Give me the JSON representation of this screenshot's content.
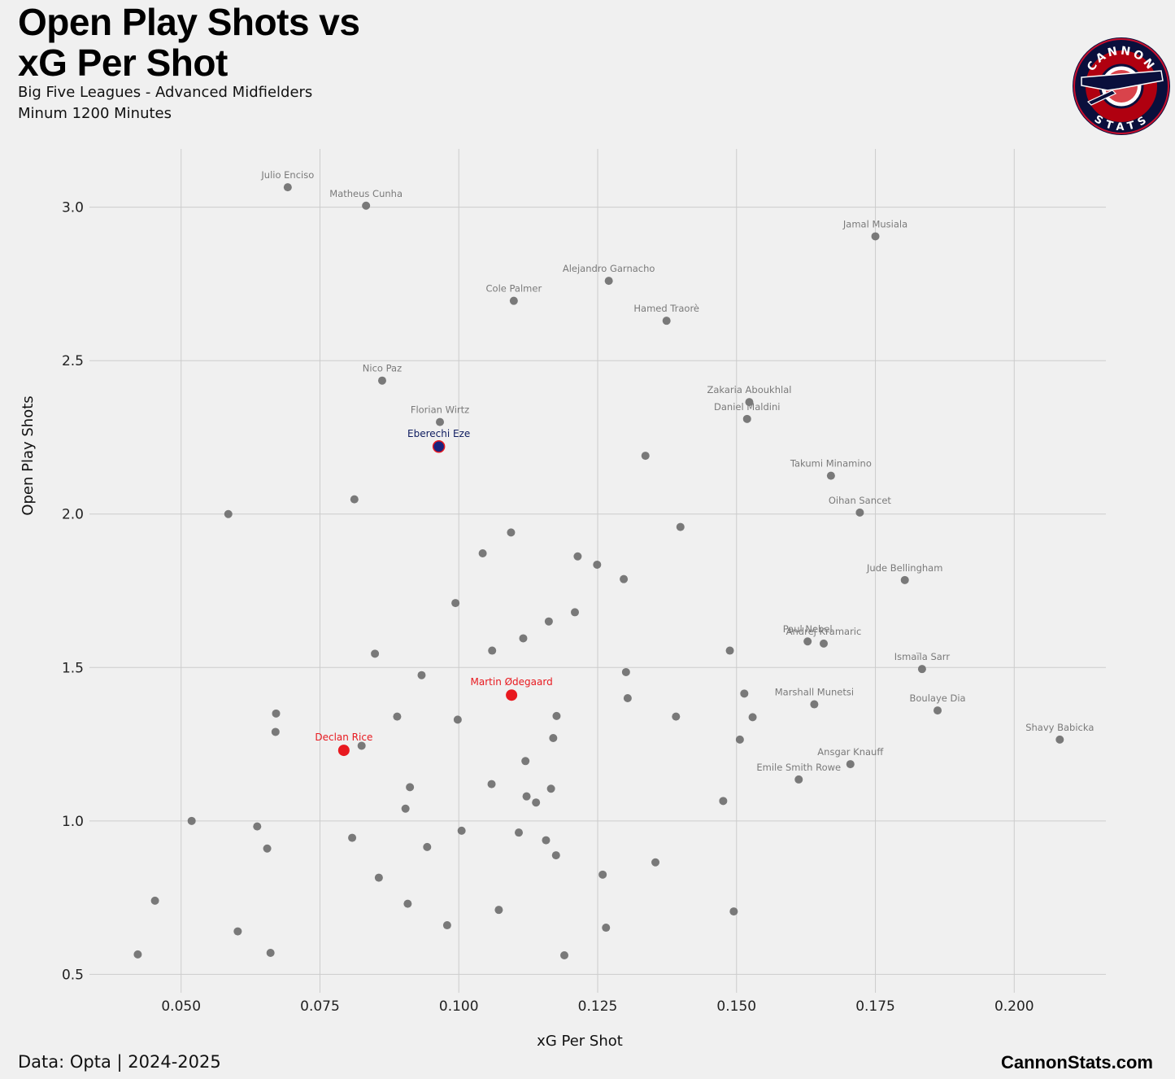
{
  "header": {
    "title_line1": "Open Play Shots vs",
    "title_line2": "xG Per Shot",
    "subtitle_line1": "Big Five Leagues - Advanced Midfielders",
    "subtitle_line2": "Minum 1200 Minutes"
  },
  "footer": {
    "source": "Data: Opta | 2024-2025",
    "site": "CannonStats.com"
  },
  "logo": {
    "top_text": "CANNON",
    "bottom_text": "STATS"
  },
  "colors": {
    "background": "#f0f0f0",
    "grid": "#cccccc",
    "point": "#6b6b6b",
    "highlight_red": "#e8191f",
    "eze_fill": "#1a237e",
    "eze_label": "#0d1b5e",
    "label_grey": "#7a7a7a"
  },
  "chart_data": {
    "type": "scatter",
    "title": "Open Play Shots vs xG Per Shot",
    "xlabel": "xG Per Shot",
    "ylabel": "Open Play Shots",
    "xlim": [
      0.0335,
      0.2165
    ],
    "ylim": [
      0.44,
      3.19
    ],
    "xticks": [
      0.05,
      0.075,
      0.1,
      0.125,
      0.15,
      0.175,
      0.2
    ],
    "xtick_labels": [
      "0.050",
      "0.075",
      "0.100",
      "0.125",
      "0.150",
      "0.175",
      "0.200"
    ],
    "yticks": [
      0.5,
      1.0,
      1.5,
      2.0,
      2.5,
      3.0
    ],
    "ytick_labels": [
      "0.5",
      "1.0",
      "1.5",
      "2.0",
      "2.5",
      "3.0"
    ],
    "grid": true,
    "highlighted": [
      {
        "name": "Martin Ødegaard",
        "x": 0.1095,
        "y": 1.41,
        "style": "red"
      },
      {
        "name": "Declan Rice",
        "x": 0.0793,
        "y": 1.23,
        "style": "red"
      },
      {
        "name": "Eberechi Eze",
        "x": 0.0964,
        "y": 2.22,
        "style": "blue"
      }
    ],
    "labeled": [
      {
        "name": "Julio Enciso",
        "x": 0.0692,
        "y": 3.065
      },
      {
        "name": "Matheus Cunha",
        "x": 0.0833,
        "y": 3.005
      },
      {
        "name": "Jamal Musiala",
        "x": 0.175,
        "y": 2.905
      },
      {
        "name": "Alejandro Garnacho",
        "x": 0.127,
        "y": 2.76
      },
      {
        "name": "Cole Palmer",
        "x": 0.1099,
        "y": 2.695
      },
      {
        "name": "Hamed Traorè",
        "x": 0.1374,
        "y": 2.63
      },
      {
        "name": "Nico Paz",
        "x": 0.0862,
        "y": 2.435
      },
      {
        "name": "Zakaria Aboukhlal",
        "x": 0.1523,
        "y": 2.365
      },
      {
        "name": "Daniel Maldini",
        "x": 0.1519,
        "y": 2.31
      },
      {
        "name": "Florian Wirtz",
        "x": 0.0966,
        "y": 2.3
      },
      {
        "name": "Takumi Minamino",
        "x": 0.167,
        "y": 2.125
      },
      {
        "name": "Oihan Sancet",
        "x": 0.1722,
        "y": 2.005
      },
      {
        "name": "Jude Bellingham",
        "x": 0.1803,
        "y": 1.785
      },
      {
        "name": "Paul Nebel",
        "x": 0.1628,
        "y": 1.585
      },
      {
        "name": "Andrej Kramaric",
        "x": 0.1657,
        "y": 1.578
      },
      {
        "name": "Ismaïla Sarr",
        "x": 0.1834,
        "y": 1.495
      },
      {
        "name": "Marshall Munetsi",
        "x": 0.164,
        "y": 1.38
      },
      {
        "name": "Boulaye Dia",
        "x": 0.1862,
        "y": 1.36
      },
      {
        "name": "Shavy Babicka",
        "x": 0.2082,
        "y": 1.265
      },
      {
        "name": "Ansgar Knauff",
        "x": 0.1705,
        "y": 1.185
      },
      {
        "name": "Emile Smith Rowe",
        "x": 0.1612,
        "y": 1.135
      }
    ],
    "others": [
      [
        0.1336,
        2.19
      ],
      [
        0.0812,
        2.048
      ],
      [
        0.0585,
        2.0
      ],
      [
        0.1399,
        1.958
      ],
      [
        0.1094,
        1.94
      ],
      [
        0.1043,
        1.872
      ],
      [
        0.1214,
        1.862
      ],
      [
        0.1249,
        1.835
      ],
      [
        0.1297,
        1.788
      ],
      [
        0.0994,
        1.71
      ],
      [
        0.1209,
        1.68
      ],
      [
        0.1162,
        1.65
      ],
      [
        0.1116,
        1.595
      ],
      [
        0.0849,
        1.545
      ],
      [
        0.106,
        1.555
      ],
      [
        0.1488,
        1.555
      ],
      [
        0.0933,
        1.475
      ],
      [
        0.1301,
        1.485
      ],
      [
        0.1304,
        1.4
      ],
      [
        0.1514,
        1.415
      ],
      [
        0.0671,
        1.35
      ],
      [
        0.0889,
        1.34
      ],
      [
        0.0998,
        1.33
      ],
      [
        0.1176,
        1.342
      ],
      [
        0.1391,
        1.34
      ],
      [
        0.1529,
        1.338
      ],
      [
        0.067,
        1.29
      ],
      [
        0.117,
        1.27
      ],
      [
        0.1506,
        1.265
      ],
      [
        0.0825,
        1.245
      ],
      [
        0.112,
        1.195
      ],
      [
        0.0912,
        1.11
      ],
      [
        0.1059,
        1.12
      ],
      [
        0.1166,
        1.105
      ],
      [
        0.1122,
        1.08
      ],
      [
        0.1139,
        1.06
      ],
      [
        0.1476,
        1.065
      ],
      [
        0.0904,
        1.04
      ],
      [
        0.0519,
        1.0
      ],
      [
        0.0637,
        0.982
      ],
      [
        0.1005,
        0.968
      ],
      [
        0.1108,
        0.962
      ],
      [
        0.0808,
        0.945
      ],
      [
        0.1157,
        0.937
      ],
      [
        0.0655,
        0.91
      ],
      [
        0.0943,
        0.915
      ],
      [
        0.1175,
        0.888
      ],
      [
        0.1354,
        0.865
      ],
      [
        0.0856,
        0.815
      ],
      [
        0.1259,
        0.825
      ],
      [
        0.0453,
        0.74
      ],
      [
        0.0908,
        0.73
      ],
      [
        0.1072,
        0.71
      ],
      [
        0.1495,
        0.705
      ],
      [
        0.0979,
        0.66
      ],
      [
        0.1265,
        0.652
      ],
      [
        0.0602,
        0.64
      ],
      [
        0.0661,
        0.57
      ],
      [
        0.119,
        0.562
      ],
      [
        0.0422,
        0.565
      ]
    ]
  }
}
